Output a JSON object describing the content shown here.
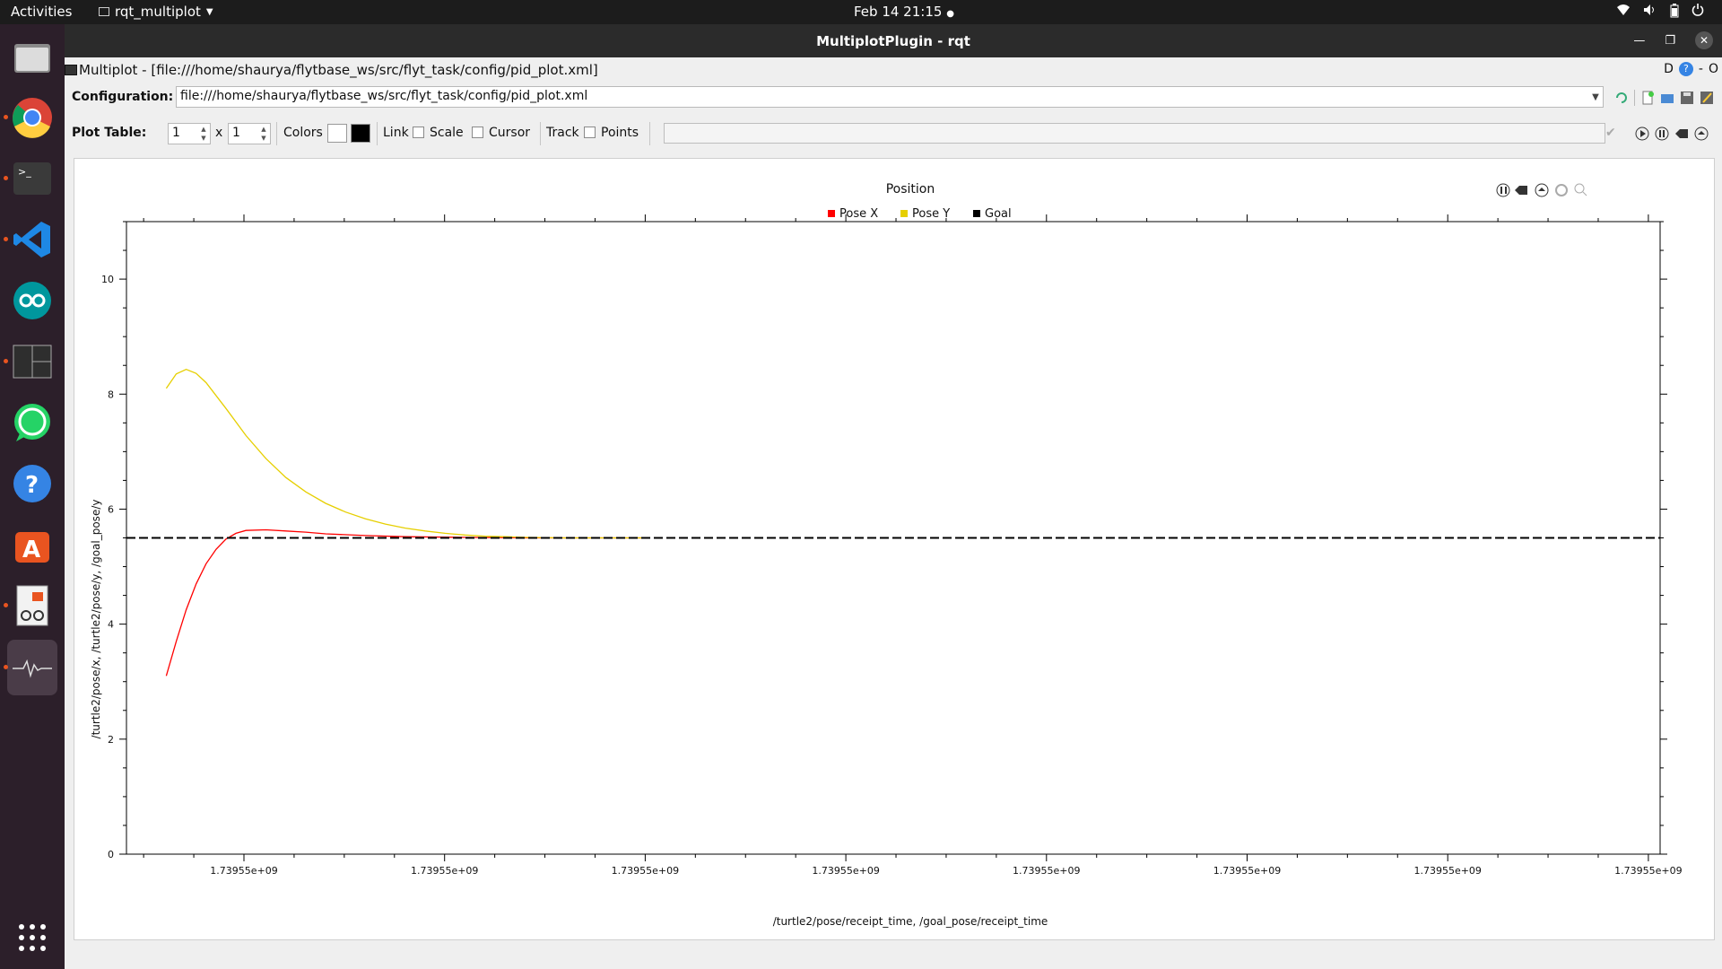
{
  "topbar": {
    "activities": "Activities",
    "app_menu": "rqt_multiplot",
    "clock": "Feb 14  21:15"
  },
  "dock": {
    "items": [
      "files",
      "chrome",
      "terminal",
      "vscode",
      "arduino",
      "terminator",
      "whatsapp",
      "help",
      "software",
      "document-viewer",
      "system-monitor"
    ]
  },
  "window": {
    "title": "MultiplotPlugin - rqt"
  },
  "plugin": {
    "header": "Multiplot - [file:///home/shaurya/flytbase_ws/src/flyt_task/config/pid_plot.xml]",
    "right_badge": "D",
    "right_o": "O",
    "config_label": "Configuration:",
    "config_value": "file:///home/shaurya/flytbase_ws/src/flyt_task/config/pid_plot.xml",
    "plot_table_label": "Plot Table:",
    "rows": "1",
    "x_label": "x",
    "cols": "1",
    "colors_label": "Colors",
    "color_fg": "#ffffff",
    "color_bg": "#000000",
    "link_label": "Link",
    "scale_label": "Scale",
    "cursor_label": "Cursor",
    "track_label": "Track",
    "points_label": "Points"
  },
  "chart_data": {
    "type": "line",
    "title": "Position",
    "xlabel": "/turtle2/pose/receipt_time, /goal_pose/receipt_time",
    "ylabel": "/turtle2/pose/x, /turtle2/pose/y, /goal_pose/y",
    "ylim": [
      0,
      11
    ],
    "yticks": [
      0,
      2,
      4,
      6,
      8,
      10
    ],
    "xtick_labels": [
      "1.73955e+09",
      "1.73955e+09",
      "1.73955e+09",
      "1.73955e+09",
      "1.73955e+09",
      "1.73955e+09",
      "1.73955e+09",
      "1.73955e+09"
    ],
    "legend": [
      "Pose X",
      "Pose Y",
      "Goal"
    ],
    "legend_position": "top-center",
    "series": [
      {
        "name": "Pose X",
        "color": "#ff0000",
        "x": [
          0,
          0.5,
          1,
          1.5,
          2,
          2.5,
          3,
          3.5,
          4,
          5,
          6,
          7,
          8,
          10,
          12,
          15,
          18,
          21,
          24
        ],
        "values": [
          3.1,
          3.7,
          4.25,
          4.7,
          5.05,
          5.3,
          5.48,
          5.58,
          5.63,
          5.64,
          5.62,
          5.6,
          5.57,
          5.54,
          5.52,
          5.51,
          5.5,
          5.5,
          5.5
        ]
      },
      {
        "name": "Pose Y",
        "color": "#e6cf00",
        "x": [
          0,
          0.5,
          1,
          1.5,
          2,
          3,
          4,
          5,
          6,
          7,
          8,
          9,
          10,
          11,
          12,
          13,
          14,
          15,
          16,
          17,
          18,
          20,
          22,
          24
        ],
        "values": [
          8.1,
          8.35,
          8.43,
          8.36,
          8.2,
          7.75,
          7.28,
          6.88,
          6.55,
          6.3,
          6.1,
          5.95,
          5.83,
          5.74,
          5.67,
          5.62,
          5.58,
          5.55,
          5.53,
          5.52,
          5.51,
          5.5,
          5.5,
          5.5
        ]
      },
      {
        "name": "Goal",
        "color": "#000000",
        "style": "dashed",
        "x": [
          -2,
          75
        ],
        "values": [
          5.5,
          5.5
        ]
      }
    ],
    "xlim": [
      -2,
      75
    ],
    "grid": false
  }
}
